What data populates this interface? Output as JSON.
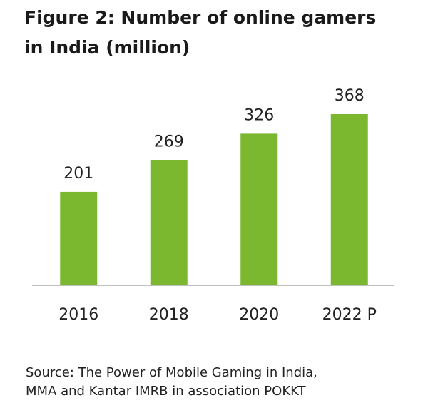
{
  "chart_data": {
    "type": "bar",
    "title": "Figure 2: Number of online gamers in India (million)",
    "categories": [
      "2016",
      "2018",
      "2020",
      "2022 P"
    ],
    "values": [
      201,
      269,
      326,
      368
    ],
    "color": "#7cb82f",
    "source": [
      "Source: The Power of Mobile Gaming in India,",
      "MMA and Kantar IMRB in association POKKT"
    ]
  }
}
